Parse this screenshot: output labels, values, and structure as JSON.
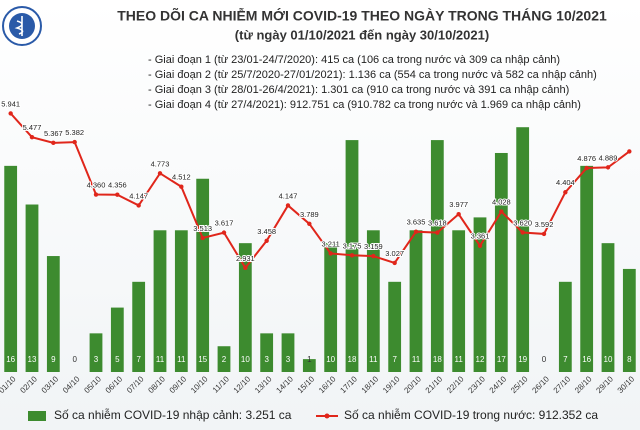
{
  "chart_data": {
    "type": "combo",
    "title": "THEO DÕI CA NHIỄM MỚI COVID-19 THEO NGÀY TRONG THÁNG 10/2021",
    "subtitle": "(từ ngày 01/10/2021 đến ngày 30/10/2021)",
    "annotations": [
      "- Giai đoạn 1 (từ 23/01-24/7/2020): 415 ca (106 ca trong nước và 309 ca nhập cảnh)",
      "- Giai đoạn 2 (từ 25/7/2020-27/01/2021): 1.136 ca (554 ca trong nước và 582 ca nhập cảnh)",
      "- Giai đoạn 3 (từ 28/01-26/4/2021): 1.301 ca (910 ca trong nước và 391 ca nhập cảnh)",
      "- Giai đoạn 4 (từ 27/4/2021): 912.751 ca (910.782 ca trong nước và 1.969 ca nhập cảnh)"
    ],
    "categories": [
      "01/10",
      "02/10",
      "03/10",
      "04/10",
      "05/10",
      "06/10",
      "07/10",
      "08/10",
      "09/10",
      "10/10",
      "11/10",
      "12/10",
      "13/10",
      "14/10",
      "15/10",
      "16/10",
      "17/10",
      "18/10",
      "19/10",
      "20/10",
      "21/10",
      "22/10",
      "23/10",
      "24/10",
      "25/10",
      "26/10",
      "27/10",
      "28/10",
      "29/10",
      "30/10"
    ],
    "ylim": [
      0,
      21.5
    ],
    "y2lim": [
      900,
      6300
    ],
    "series": [
      {
        "name": "Số ca nhiễm COVID-19 nhập cảnh: 3.251 ca",
        "type": "bar",
        "color": "#3d8b2f",
        "values": [
          16,
          13,
          9,
          0,
          3,
          5,
          7,
          11,
          11,
          15,
          2,
          10,
          3,
          3,
          1,
          10,
          18,
          11,
          7,
          11,
          18,
          11,
          12,
          17,
          19,
          0,
          7,
          16,
          10,
          8
        ]
      },
      {
        "name": "Số ca nhiễm COVID-19 trong nước: 912.352 ca",
        "type": "line",
        "axis": "y2",
        "color": "#e0261b",
        "values": [
          5941,
          5477,
          5367,
          5382,
          4360,
          4356,
          4147,
          4773,
          4512,
          3513,
          3617,
          2931,
          3458,
          4147,
          3789,
          3211,
          3175,
          3159,
          3027,
          3635,
          3618,
          3977,
          3361,
          4028,
          3620,
          3592,
          4404,
          4876,
          4889,
          5200
        ],
        "value_labels": [
          "5.941",
          "5.477",
          "5.367",
          "5.382",
          "4.360",
          "4.356",
          "4.147",
          "4.773",
          "4.512",
          "3.513",
          "3.617",
          "2.931",
          "3.458",
          "4.147",
          "3.789",
          "3.211",
          "3.175",
          "3.159",
          "3.027",
          "3.635",
          "3.618",
          "3.977",
          "3.361",
          "4.028",
          "3.620",
          "3.592",
          "4.404",
          "4.876",
          "4.889",
          null
        ]
      }
    ]
  }
}
